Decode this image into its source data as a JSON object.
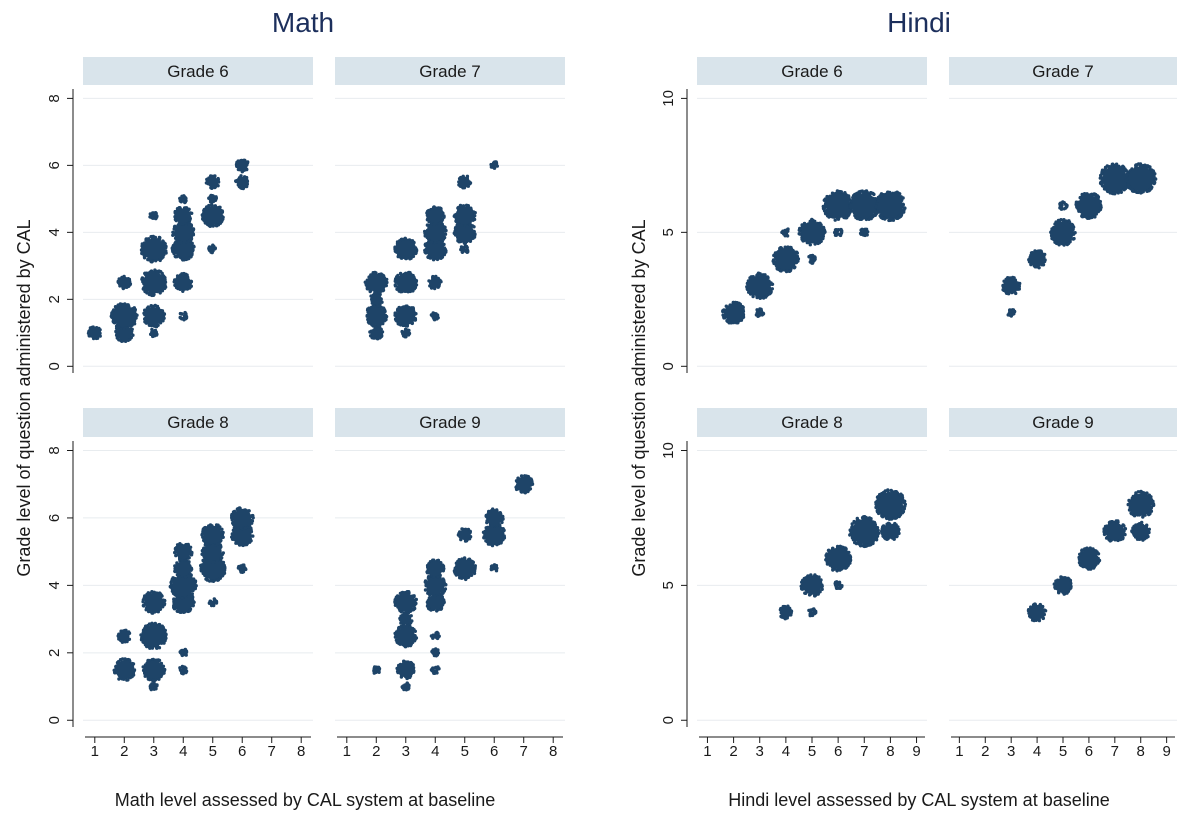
{
  "chart_data": {
    "type": "scatter",
    "note_style": "jittered dot clusters; cluster size reflects number of students",
    "colors": {
      "points": "#1e4468",
      "strip": "#d9e4eb",
      "grid": "#e8ecef",
      "title": "#1c2f5c"
    },
    "panels": [
      {
        "subject": "Math",
        "title": "Math",
        "ylabel": "Grade level of question administered by CAL",
        "xlabel": "Math level assessed by CAL system at baseline",
        "xlim": [
          0.6,
          8.4
        ],
        "ylim": [
          -0.2,
          8.4
        ],
        "xticks": [
          1,
          2,
          3,
          4,
          5,
          6,
          7,
          8
        ],
        "yticks": [
          0,
          2,
          4,
          6,
          8
        ],
        "facets": [
          {
            "label": "Grade 6",
            "clusters": [
              {
                "x": 1,
                "y": 1,
                "size": 2
              },
              {
                "x": 2,
                "y": 1,
                "size": 3
              },
              {
                "x": 2,
                "y": 1.5,
                "size": 5
              },
              {
                "x": 2,
                "y": 2.5,
                "size": 2
              },
              {
                "x": 3,
                "y": 1,
                "size": 1
              },
              {
                "x": 3,
                "y": 1.5,
                "size": 4
              },
              {
                "x": 3,
                "y": 2.5,
                "size": 5
              },
              {
                "x": 3,
                "y": 3.5,
                "size": 5
              },
              {
                "x": 3,
                "y": 4.5,
                "size": 1
              },
              {
                "x": 4,
                "y": 1.5,
                "size": 1
              },
              {
                "x": 4,
                "y": 2.5,
                "size": 3
              },
              {
                "x": 4,
                "y": 3.5,
                "size": 4
              },
              {
                "x": 4,
                "y": 4,
                "size": 4
              },
              {
                "x": 4,
                "y": 4.5,
                "size": 3
              },
              {
                "x": 4,
                "y": 5,
                "size": 1
              },
              {
                "x": 5,
                "y": 3.5,
                "size": 1
              },
              {
                "x": 5,
                "y": 4.5,
                "size": 4
              },
              {
                "x": 5,
                "y": 5,
                "size": 1
              },
              {
                "x": 5,
                "y": 5.5,
                "size": 2
              },
              {
                "x": 6,
                "y": 5.5,
                "size": 2
              },
              {
                "x": 6,
                "y": 6,
                "size": 2
              }
            ]
          },
          {
            "label": "Grade 7",
            "clusters": [
              {
                "x": 2,
                "y": 1,
                "size": 2
              },
              {
                "x": 2,
                "y": 1.5,
                "size": 4
              },
              {
                "x": 2,
                "y": 2,
                "size": 2
              },
              {
                "x": 2,
                "y": 2.5,
                "size": 4
              },
              {
                "x": 3,
                "y": 1,
                "size": 1
              },
              {
                "x": 3,
                "y": 1.5,
                "size": 4
              },
              {
                "x": 3,
                "y": 2.5,
                "size": 4
              },
              {
                "x": 3,
                "y": 3.5,
                "size": 4
              },
              {
                "x": 4,
                "y": 1.5,
                "size": 1
              },
              {
                "x": 4,
                "y": 2.5,
                "size": 2
              },
              {
                "x": 4,
                "y": 3.5,
                "size": 4
              },
              {
                "x": 4,
                "y": 4,
                "size": 4
              },
              {
                "x": 4,
                "y": 4.5,
                "size": 3
              },
              {
                "x": 5,
                "y": 3.5,
                "size": 1
              },
              {
                "x": 5,
                "y": 4,
                "size": 4
              },
              {
                "x": 5,
                "y": 4.5,
                "size": 4
              },
              {
                "x": 5,
                "y": 5.5,
                "size": 2
              },
              {
                "x": 6,
                "y": 6,
                "size": 1
              }
            ]
          },
          {
            "label": "Grade 8",
            "clusters": [
              {
                "x": 2,
                "y": 1.5,
                "size": 4
              },
              {
                "x": 2,
                "y": 2.5,
                "size": 2
              },
              {
                "x": 3,
                "y": 1,
                "size": 1
              },
              {
                "x": 3,
                "y": 1.5,
                "size": 4
              },
              {
                "x": 3,
                "y": 2.5,
                "size": 5
              },
              {
                "x": 3,
                "y": 3.5,
                "size": 4
              },
              {
                "x": 4,
                "y": 1.5,
                "size": 1
              },
              {
                "x": 4,
                "y": 2,
                "size": 1
              },
              {
                "x": 4,
                "y": 3.5,
                "size": 4
              },
              {
                "x": 4,
                "y": 4,
                "size": 5
              },
              {
                "x": 4,
                "y": 4.5,
                "size": 3
              },
              {
                "x": 4,
                "y": 5,
                "size": 3
              },
              {
                "x": 5,
                "y": 3.5,
                "size": 1
              },
              {
                "x": 5,
                "y": 4.5,
                "size": 5
              },
              {
                "x": 5,
                "y": 5,
                "size": 4
              },
              {
                "x": 5,
                "y": 5.5,
                "size": 4
              },
              {
                "x": 6,
                "y": 4.5,
                "size": 1
              },
              {
                "x": 6,
                "y": 5.5,
                "size": 4
              },
              {
                "x": 6,
                "y": 6,
                "size": 4
              }
            ]
          },
          {
            "label": "Grade 9",
            "clusters": [
              {
                "x": 2,
                "y": 1.5,
                "size": 1
              },
              {
                "x": 3,
                "y": 1,
                "size": 1
              },
              {
                "x": 3,
                "y": 1.5,
                "size": 3
              },
              {
                "x": 3,
                "y": 2.5,
                "size": 4
              },
              {
                "x": 3,
                "y": 3,
                "size": 2
              },
              {
                "x": 3,
                "y": 3.5,
                "size": 4
              },
              {
                "x": 4,
                "y": 1.5,
                "size": 1
              },
              {
                "x": 4,
                "y": 2,
                "size": 1
              },
              {
                "x": 4,
                "y": 2.5,
                "size": 1
              },
              {
                "x": 4,
                "y": 3.5,
                "size": 3
              },
              {
                "x": 4,
                "y": 4,
                "size": 4
              },
              {
                "x": 4,
                "y": 4.5,
                "size": 3
              },
              {
                "x": 5,
                "y": 4.5,
                "size": 4
              },
              {
                "x": 5,
                "y": 5.5,
                "size": 2
              },
              {
                "x": 6,
                "y": 4.5,
                "size": 1
              },
              {
                "x": 6,
                "y": 5.5,
                "size": 4
              },
              {
                "x": 6,
                "y": 6,
                "size": 3
              },
              {
                "x": 7,
                "y": 7,
                "size": 3
              }
            ]
          }
        ]
      },
      {
        "subject": "Hindi",
        "title": "Hindi",
        "ylabel": "Grade level of question administered by CAL",
        "xlabel": "Hindi level assessed by CAL system at baseline",
        "xlim": [
          0.6,
          9.4
        ],
        "ylim": [
          -0.25,
          10.5
        ],
        "xticks": [
          1,
          2,
          3,
          4,
          5,
          6,
          7,
          8,
          9
        ],
        "yticks": [
          0,
          5,
          10
        ],
        "facets": [
          {
            "label": "Grade 6",
            "clusters": [
              {
                "x": 2,
                "y": 2,
                "size": 4
              },
              {
                "x": 3,
                "y": 2,
                "size": 1
              },
              {
                "x": 3,
                "y": 3,
                "size": 5
              },
              {
                "x": 4,
                "y": 4,
                "size": 5
              },
              {
                "x": 4,
                "y": 5,
                "size": 1
              },
              {
                "x": 5,
                "y": 4,
                "size": 1
              },
              {
                "x": 5,
                "y": 5,
                "size": 5
              },
              {
                "x": 6,
                "y": 5,
                "size": 1
              },
              {
                "x": 6,
                "y": 6,
                "size": 6
              },
              {
                "x": 7,
                "y": 5,
                "size": 1
              },
              {
                "x": 7,
                "y": 6,
                "size": 6
              },
              {
                "x": 8,
                "y": 6,
                "size": 6
              }
            ]
          },
          {
            "label": "Grade 7",
            "clusters": [
              {
                "x": 3,
                "y": 2,
                "size": 1
              },
              {
                "x": 3,
                "y": 3,
                "size": 3
              },
              {
                "x": 4,
                "y": 4,
                "size": 3
              },
              {
                "x": 5,
                "y": 5,
                "size": 5
              },
              {
                "x": 5,
                "y": 6,
                "size": 1
              },
              {
                "x": 6,
                "y": 6,
                "size": 5
              },
              {
                "x": 7,
                "y": 7,
                "size": 6
              },
              {
                "x": 8,
                "y": 7,
                "size": 6
              }
            ]
          },
          {
            "label": "Grade 8",
            "clusters": [
              {
                "x": 4,
                "y": 4,
                "size": 2
              },
              {
                "x": 5,
                "y": 4,
                "size": 1
              },
              {
                "x": 5,
                "y": 5,
                "size": 4
              },
              {
                "x": 6,
                "y": 5,
                "size": 1
              },
              {
                "x": 6,
                "y": 6,
                "size": 5
              },
              {
                "x": 7,
                "y": 7,
                "size": 6
              },
              {
                "x": 8,
                "y": 7,
                "size": 3
              },
              {
                "x": 8,
                "y": 8,
                "size": 6
              }
            ]
          },
          {
            "label": "Grade 9",
            "clusters": [
              {
                "x": 4,
                "y": 4,
                "size": 3
              },
              {
                "x": 5,
                "y": 5,
                "size": 3
              },
              {
                "x": 6,
                "y": 6,
                "size": 4
              },
              {
                "x": 7,
                "y": 7,
                "size": 4
              },
              {
                "x": 8,
                "y": 7,
                "size": 3
              },
              {
                "x": 8,
                "y": 8,
                "size": 5
              }
            ]
          }
        ]
      }
    ]
  }
}
